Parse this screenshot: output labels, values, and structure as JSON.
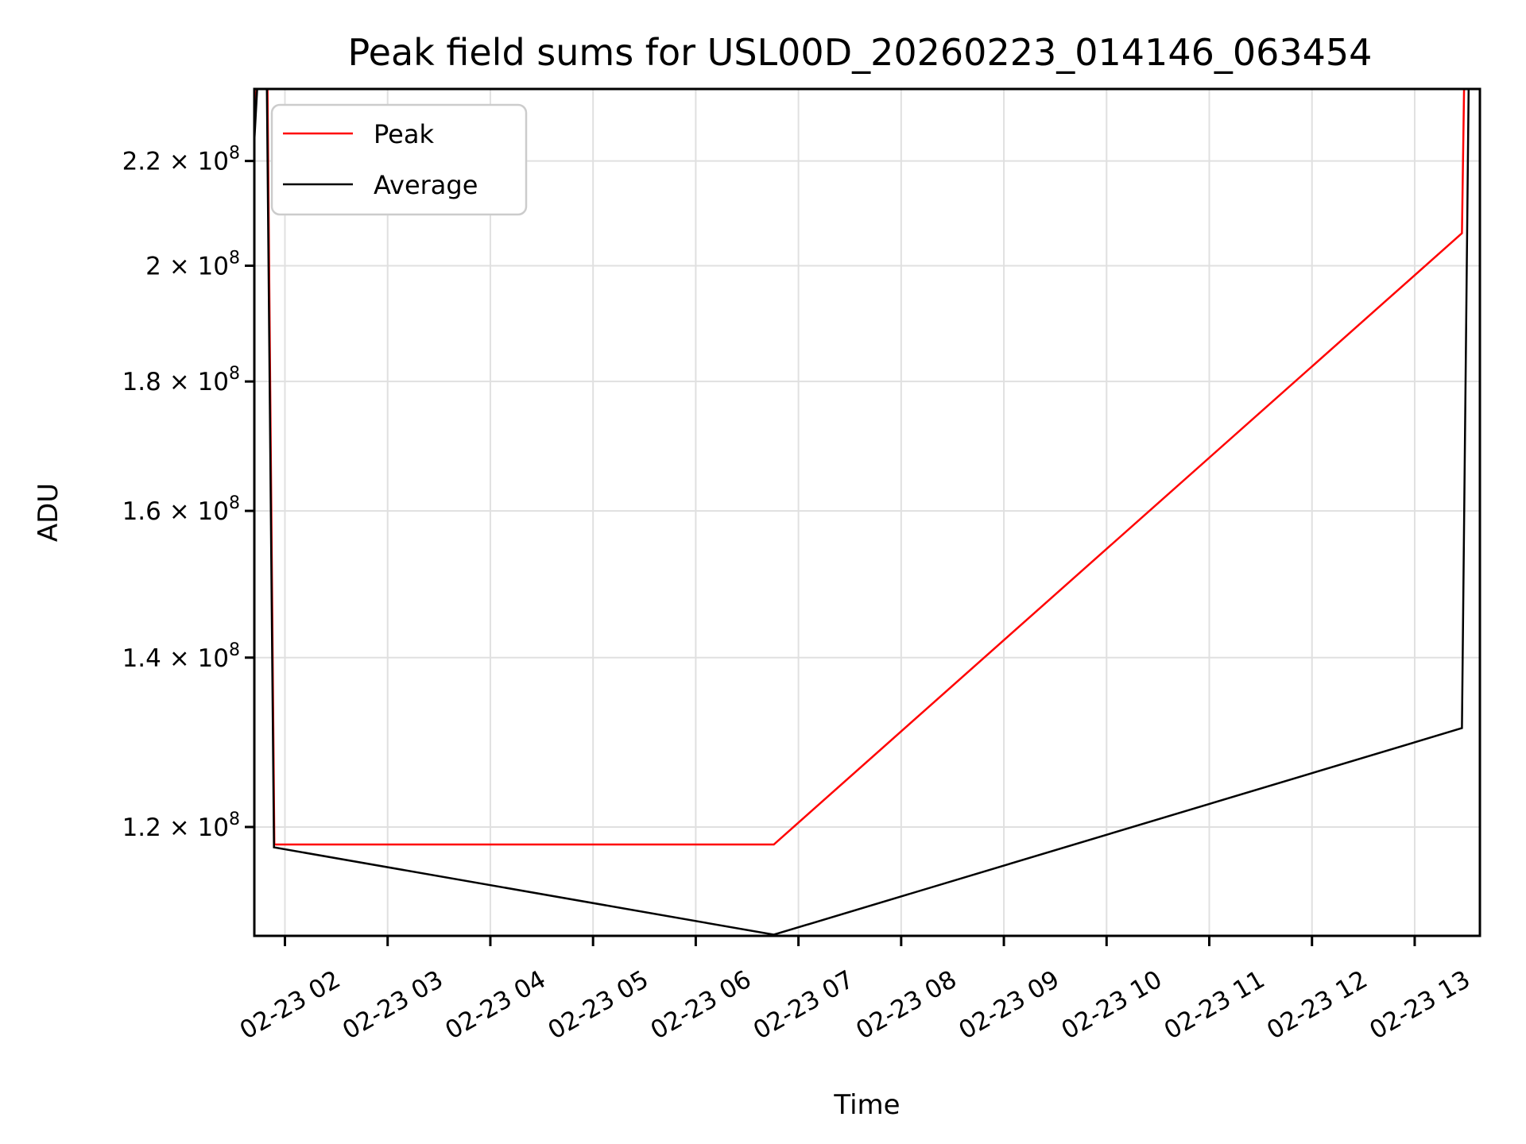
{
  "chart_data": {
    "type": "line",
    "title": "Peak field sums for USL00D_20260223_014146_063454",
    "xlabel": "Time",
    "ylabel": "ADU",
    "grid": true,
    "legend_position": "upper left",
    "colors": {
      "grid": "#e0e0e0",
      "spine": "#000000",
      "legend_border": "#cccccc",
      "background": "#ffffff"
    },
    "x_axis": {
      "scale": "linear-time",
      "range_hours": [
        1.702,
        13.635
      ],
      "ticks": [
        {
          "hour": 2,
          "label": "02-23 02"
        },
        {
          "hour": 3,
          "label": "02-23 03"
        },
        {
          "hour": 4,
          "label": "02-23 04"
        },
        {
          "hour": 5,
          "label": "02-23 05"
        },
        {
          "hour": 6,
          "label": "02-23 06"
        },
        {
          "hour": 7,
          "label": "02-23 07"
        },
        {
          "hour": 8,
          "label": "02-23 08"
        },
        {
          "hour": 9,
          "label": "02-23 09"
        },
        {
          "hour": 10,
          "label": "02-23 10"
        },
        {
          "hour": 11,
          "label": "02-23 11"
        },
        {
          "hour": 12,
          "label": "02-23 12"
        },
        {
          "hour": 13,
          "label": "02-23 13"
        }
      ]
    },
    "y_axis": {
      "scale": "log",
      "range": [
        108680000,
        234900000
      ],
      "ticks": [
        {
          "value": 120000000,
          "mantissa": "1.2",
          "times": " × ",
          "base": "10",
          "exponent": "8"
        },
        {
          "value": 140000000,
          "mantissa": "1.4",
          "times": " × ",
          "base": "10",
          "exponent": "8"
        },
        {
          "value": 160000000,
          "mantissa": "1.6",
          "times": " × ",
          "base": "10",
          "exponent": "8"
        },
        {
          "value": 180000000,
          "mantissa": "1.8",
          "times": " × ",
          "base": "10",
          "exponent": "8"
        },
        {
          "value": 200000000,
          "mantissa": "2",
          "times": " × ",
          "base": "10",
          "exponent": "8"
        },
        {
          "value": 220000000,
          "mantissa": "2.2",
          "times": " × ",
          "base": "10",
          "exponent": "8"
        }
      ]
    },
    "series": [
      {
        "name": "Peak",
        "color": "#ff0000",
        "points_hour_adu": [
          [
            1.702,
            225500000
          ],
          [
            1.815,
            275000000
          ],
          [
            1.897,
            118100000
          ],
          [
            6.76,
            118100000
          ],
          [
            13.46,
            206000000
          ],
          [
            13.53,
            320000000
          ]
        ]
      },
      {
        "name": "Average",
        "color": "#000000",
        "points_hour_adu": [
          [
            1.702,
            224000000
          ],
          [
            1.81,
            270000000
          ],
          [
            1.893,
            117800000
          ],
          [
            6.76,
            108800000
          ],
          [
            13.46,
            131300000
          ],
          [
            13.56,
            320000000
          ]
        ]
      }
    ],
    "legend": {
      "items": [
        {
          "label": "Peak",
          "color": "#ff0000"
        },
        {
          "label": "Average",
          "color": "#000000"
        }
      ]
    }
  }
}
